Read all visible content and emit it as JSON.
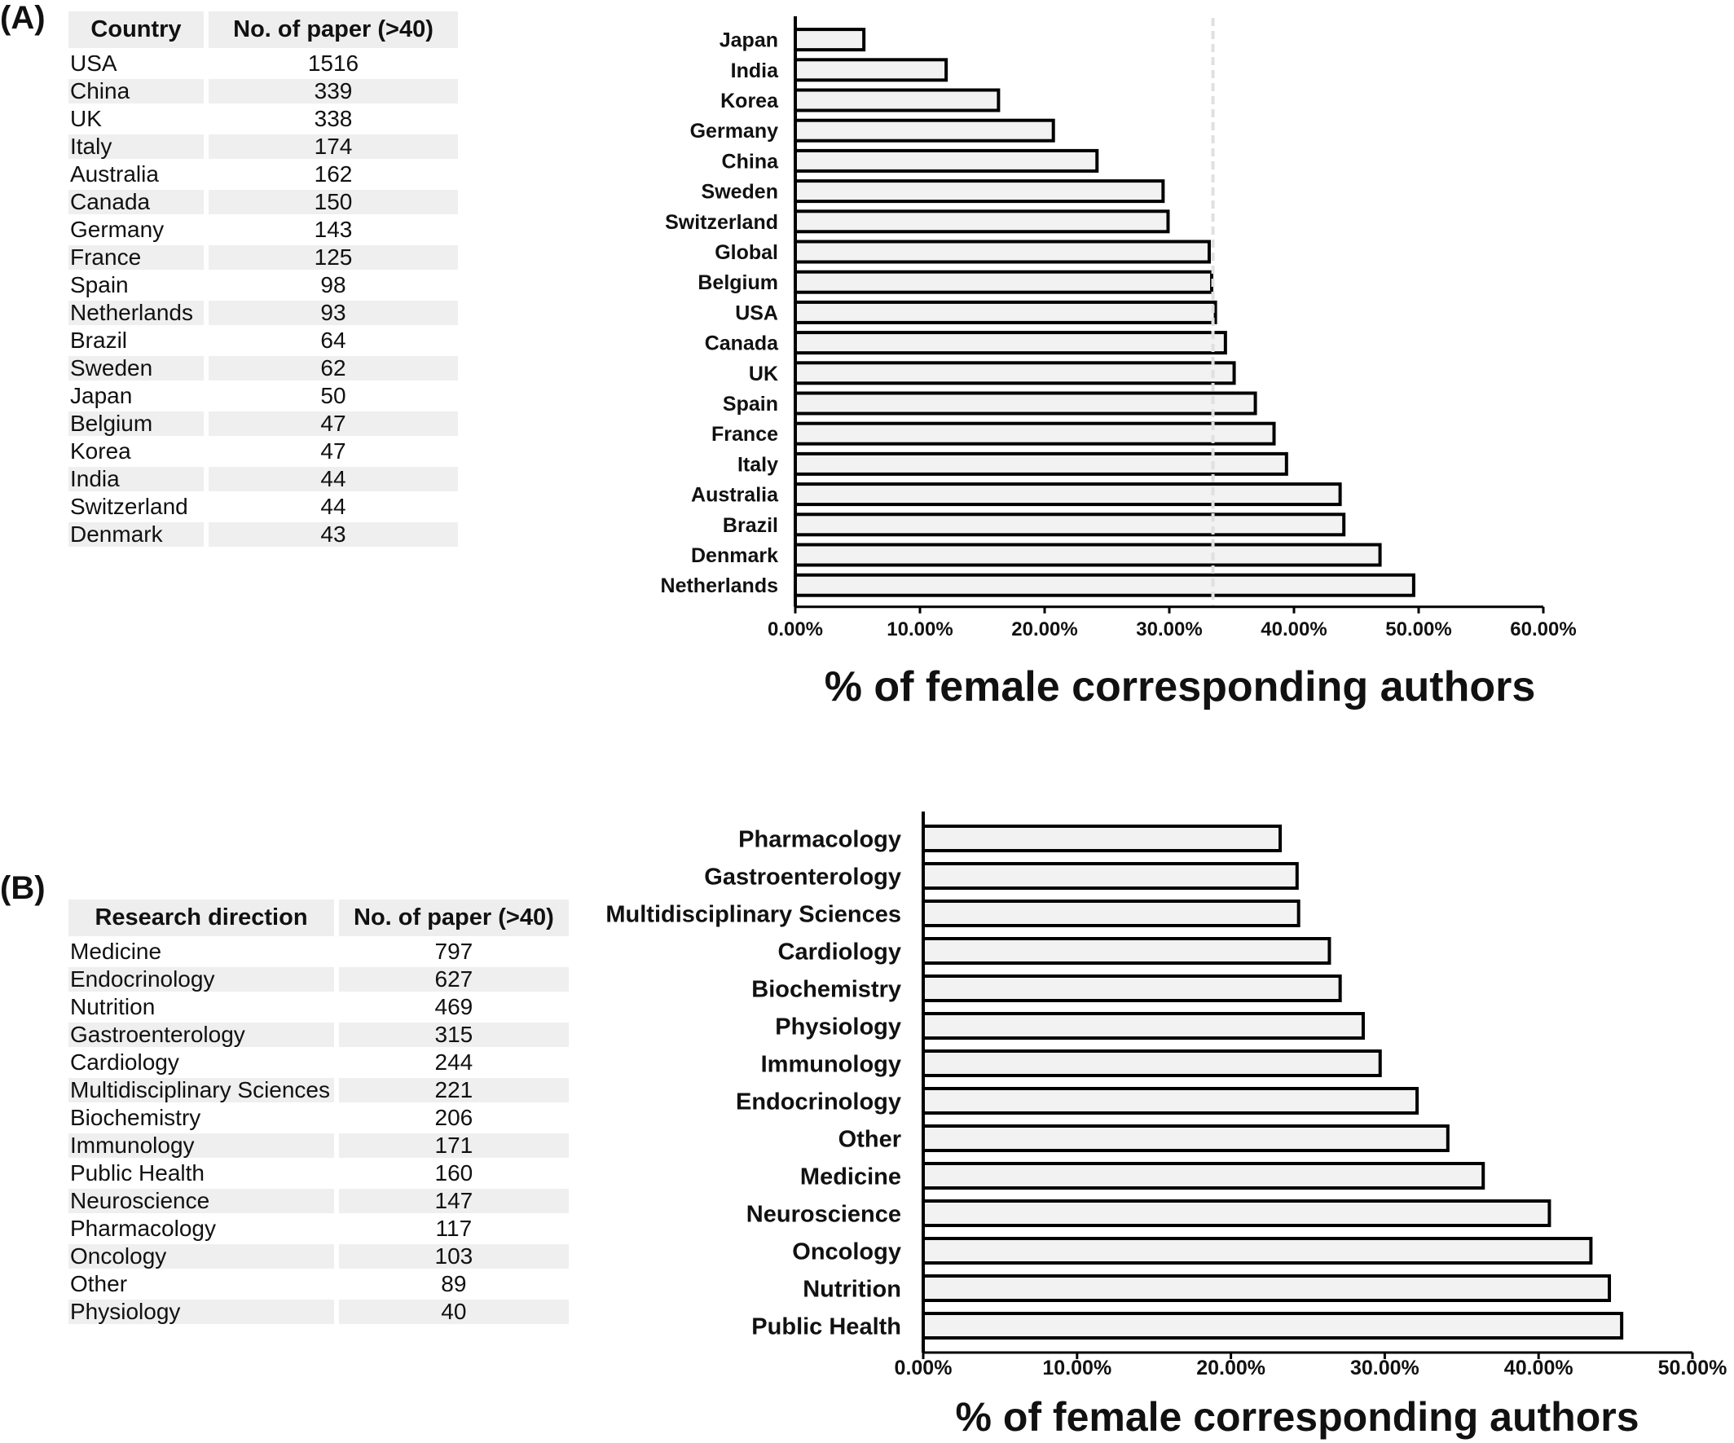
{
  "panel_a": {
    "label": "(A)",
    "table": {
      "headers": [
        "Country",
        "No. of paper (>40)"
      ],
      "rows": [
        [
          "USA",
          "1516"
        ],
        [
          "China",
          "339"
        ],
        [
          "UK",
          "338"
        ],
        [
          "Italy",
          "174"
        ],
        [
          "Australia",
          "162"
        ],
        [
          "Canada",
          "150"
        ],
        [
          "Germany",
          "143"
        ],
        [
          "France",
          "125"
        ],
        [
          "Spain",
          "98"
        ],
        [
          "Netherlands",
          "93"
        ],
        [
          "Brazil",
          "64"
        ],
        [
          "Sweden",
          "62"
        ],
        [
          "Japan",
          "50"
        ],
        [
          "Belgium",
          "47"
        ],
        [
          "Korea",
          "47"
        ],
        [
          "India",
          "44"
        ],
        [
          "Switzerland",
          "44"
        ],
        [
          "Denmark",
          "43"
        ]
      ]
    }
  },
  "panel_b": {
    "label": "(B)",
    "table": {
      "headers": [
        "Research direction",
        "No. of paper (>40)"
      ],
      "rows": [
        [
          "Medicine",
          "797"
        ],
        [
          "Endocrinology",
          "627"
        ],
        [
          "Nutrition",
          "469"
        ],
        [
          "Gastroenterology",
          "315"
        ],
        [
          "Cardiology",
          "244"
        ],
        [
          "Multidisciplinary Sciences",
          "221"
        ],
        [
          "Biochemistry",
          "206"
        ],
        [
          "Immunology",
          "171"
        ],
        [
          "Public Health",
          "160"
        ],
        [
          "Neuroscience",
          "147"
        ],
        [
          "Pharmacology",
          "117"
        ],
        [
          "Oncology",
          "103"
        ],
        [
          "Other",
          "89"
        ],
        [
          "Physiology",
          "40"
        ]
      ]
    }
  },
  "chart_data": [
    {
      "type": "bar",
      "orientation": "horizontal",
      "categories": [
        "Japan",
        "India",
        "Korea",
        "Germany",
        "China",
        "Sweden",
        "Switzerland",
        "Global",
        "Belgium",
        "USA",
        "Canada",
        "UK",
        "Spain",
        "France",
        "Italy",
        "Australia",
        "Brazil",
        "Denmark",
        "Netherlands"
      ],
      "values": [
        5.5,
        12.1,
        16.3,
        20.7,
        24.2,
        29.5,
        29.9,
        33.2,
        33.4,
        33.7,
        34.5,
        35.2,
        36.9,
        38.4,
        39.4,
        43.7,
        44.0,
        46.9,
        49.6
      ],
      "reference_line": 33.5,
      "xlabel": "% of female corresponding authors",
      "ylabel": "",
      "xlim": [
        0,
        60
      ],
      "ticks": [
        "0.00%",
        "10.00%",
        "20.00%",
        "30.00%",
        "40.00%",
        "50.00%",
        "60.00%"
      ],
      "bar_fill": "#f2f2f2",
      "bar_stroke": "#000000",
      "reference_line_color": "#e0e0e0"
    },
    {
      "type": "bar",
      "orientation": "horizontal",
      "categories": [
        "Pharmacology",
        "Gastroenterology",
        "Multidisciplinary Sciences",
        "Cardiology",
        "Biochemistry",
        "Physiology",
        "Immunology",
        "Endocrinology",
        "Other",
        "Medicine",
        "Neuroscience",
        "Oncology",
        "Nutrition",
        "Public Health"
      ],
      "values": [
        23.2,
        24.3,
        24.4,
        26.4,
        27.1,
        28.6,
        29.7,
        32.1,
        34.1,
        36.4,
        40.7,
        43.4,
        44.6,
        45.4
      ],
      "xlabel": "% of female corresponding authors",
      "ylabel": "",
      "xlim": [
        0,
        50
      ],
      "ticks": [
        "0.00%",
        "10.00%",
        "20.00%",
        "30.00%",
        "40.00%",
        "50.00%"
      ],
      "bar_fill": "#f2f2f2",
      "bar_stroke": "#000000"
    }
  ]
}
